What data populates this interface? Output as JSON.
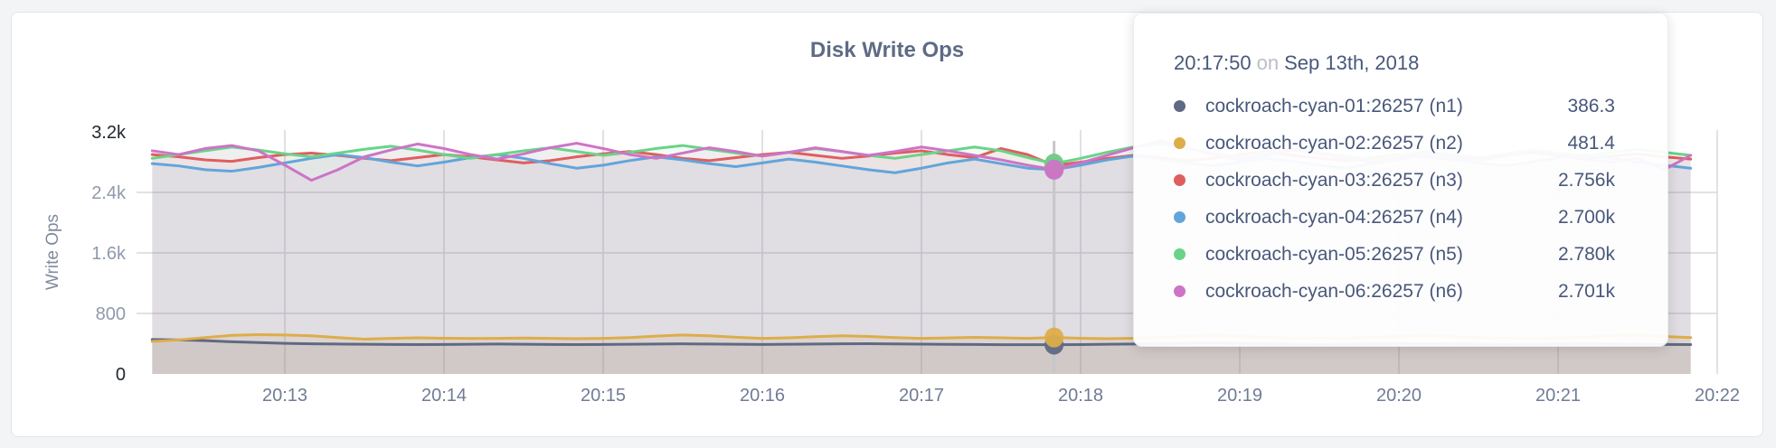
{
  "chart": {
    "title": "Disk Write Ops",
    "y_axis": {
      "label": "Write Ops"
    }
  },
  "tooltip": {
    "time": "20:17:50",
    "separator": "on",
    "date": "Sep 13th, 2018",
    "values": [
      "386.3",
      "481.4",
      "2.756k",
      "2.700k",
      "2.780k",
      "2.701k"
    ]
  },
  "chart_data": {
    "type": "area",
    "title": "Disk Write Ops",
    "ylabel": "Write Ops",
    "ylim": [
      0,
      3200
    ],
    "y_tick_values": [
      0,
      800,
      1600,
      2400,
      3200
    ],
    "y_tick_labels": [
      "0",
      "800",
      "1.6k",
      "2.4k",
      "3.2k"
    ],
    "x_tick_labels": [
      "20:13",
      "20:14",
      "20:15",
      "20:16",
      "20:17",
      "20:18",
      "20:19",
      "20:20",
      "20:21",
      "20:22"
    ],
    "x_start": "20:12:10",
    "x_interval_seconds": 10,
    "hover": {
      "index": 34,
      "time": "20:17:50",
      "date": "Sep 13th, 2018"
    },
    "series": [
      {
        "name": "cockroach-cyan-01:26257 (n1)",
        "color": "#5f6983",
        "fill_opacity": 0.12,
        "values": [
          455,
          450,
          440,
          425,
          415,
          405,
          398,
          395,
          392,
          390,
          388,
          390,
          392,
          395,
          392,
          390,
          388,
          390,
          393,
          396,
          398,
          395,
          392,
          390,
          392,
          395,
          398,
          400,
          397,
          394,
          391,
          389,
          387,
          386,
          386.3,
          388,
          392,
          396,
          400,
          404,
          408,
          403,
          397,
          392,
          390,
          392,
          395,
          398,
          401,
          397,
          393,
          390,
          392,
          396,
          400,
          396,
          392,
          390,
          388
        ]
      },
      {
        "name": "cockroach-cyan-02:26257 (n2)",
        "color": "#ddad4a",
        "fill_opacity": 0.14,
        "values": [
          430,
          450,
          480,
          510,
          520,
          515,
          505,
          480,
          460,
          470,
          478,
          472,
          468,
          470,
          474,
          470,
          466,
          470,
          480,
          500,
          515,
          505,
          485,
          470,
          478,
          492,
          505,
          495,
          480,
          470,
          476,
          484,
          478,
          470,
          481.4,
          472,
          466,
          472,
          484,
          498,
          510,
          500,
          486,
          476,
          470,
          476,
          486,
          498,
          508,
          496,
          482,
          472,
          468,
          476,
          490,
          504,
          512,
          496,
          480
        ]
      },
      {
        "name": "cockroach-cyan-03:26257 (n3)",
        "color": "#e05d5f",
        "fill_opacity": 0.085,
        "values": [
          2900,
          2870,
          2830,
          2810,
          2860,
          2900,
          2920,
          2890,
          2850,
          2820,
          2860,
          2900,
          2870,
          2830,
          2790,
          2820,
          2870,
          2910,
          2940,
          2900,
          2850,
          2820,
          2860,
          2900,
          2930,
          2890,
          2850,
          2880,
          2920,
          2950,
          2900,
          2860,
          2980,
          2900,
          2756,
          2800,
          2850,
          2890,
          2860,
          2820,
          2850,
          2900,
          2940,
          2890,
          2850,
          2820,
          2860,
          2900,
          2870,
          2830,
          2860,
          2900,
          2930,
          2890,
          2850,
          2880,
          2910,
          2870,
          2840
        ]
      },
      {
        "name": "cockroach-cyan-04:26257 (n4)",
        "color": "#62a5da",
        "fill_opacity": 0.085,
        "values": [
          2780,
          2750,
          2700,
          2680,
          2730,
          2790,
          2850,
          2900,
          2860,
          2800,
          2750,
          2800,
          2860,
          2900,
          2850,
          2780,
          2720,
          2760,
          2820,
          2870,
          2830,
          2780,
          2740,
          2790,
          2840,
          2800,
          2750,
          2700,
          2660,
          2720,
          2790,
          2840,
          2780,
          2720,
          2700,
          2760,
          2830,
          2880,
          2840,
          2790,
          2750,
          2800,
          2850,
          2810,
          2760,
          2720,
          2780,
          2840,
          2890,
          2840,
          2790,
          2750,
          2800,
          2860,
          2900,
          2850,
          2800,
          2760,
          2720
        ]
      },
      {
        "name": "cockroach-cyan-05:26257 (n5)",
        "color": "#6ad389",
        "fill_opacity": 0.085,
        "values": [
          2850,
          2900,
          2950,
          3000,
          2960,
          2910,
          2870,
          2920,
          2970,
          3010,
          2960,
          2900,
          2850,
          2900,
          2950,
          2990,
          2940,
          2890,
          2930,
          2980,
          3020,
          2970,
          2920,
          2880,
          2930,
          2980,
          2940,
          2890,
          2850,
          2900,
          2950,
          3000,
          2950,
          2860,
          2780,
          2850,
          2930,
          3000,
          3040,
          2980,
          2920,
          2870,
          2920,
          2970,
          2930,
          2880,
          2840,
          2890,
          2940,
          2900,
          2860,
          2910,
          2960,
          2920,
          2880,
          2930,
          2970,
          2930,
          2890
        ]
      },
      {
        "name": "cockroach-cyan-06:26257 (n6)",
        "color": "#cd74c6",
        "fill_opacity": 0.085,
        "values": [
          2950,
          2900,
          2980,
          3020,
          2950,
          2760,
          2560,
          2700,
          2870,
          2960,
          3040,
          2980,
          2900,
          2840,
          2910,
          2990,
          3050,
          2980,
          2900,
          2850,
          2920,
          2990,
          2940,
          2880,
          2930,
          2990,
          2940,
          2890,
          2940,
          3000,
          2950,
          2890,
          2830,
          2760,
          2701,
          2790,
          2890,
          2990,
          3080,
          2990,
          2900,
          2830,
          2890,
          2960,
          2910,
          2850,
          2800,
          2860,
          2930,
          2880,
          2830,
          2880,
          2940,
          2890,
          2840,
          2800,
          2850,
          2700,
          2890
        ]
      }
    ]
  }
}
